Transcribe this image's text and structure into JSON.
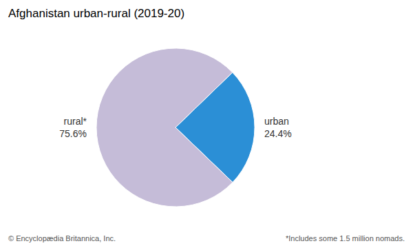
{
  "chart_data": {
    "type": "pie",
    "title": "Afghanistan urban-rural (2019-20)",
    "categories": [
      "urban",
      "rural*"
    ],
    "values": [
      24.4,
      75.6
    ],
    "value_labels": [
      "24.4%",
      "75.6%"
    ],
    "data_labels": true,
    "colors": [
      "#2b8fd6",
      "#c5bcd8"
    ],
    "annotations": [
      "© Encyclopædia Britannica, Inc.",
      "*Includes some 1.5 million nomads."
    ]
  }
}
